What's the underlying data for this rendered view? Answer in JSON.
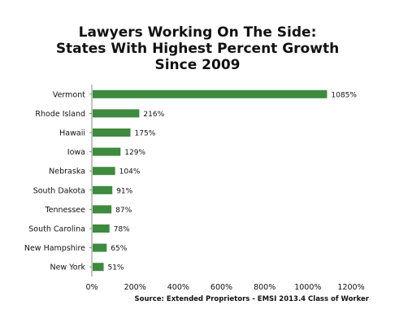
{
  "chart_data": {
    "type": "bar",
    "orientation": "horizontal",
    "title_lines": [
      "Lawyers Working On The Side:",
      "States With Highest Percent Growth",
      "Since 2009"
    ],
    "categories": [
      "Vermont",
      "Rhode Island",
      "Hawaii",
      "Iowa",
      "Nebraska",
      "South Dakota",
      "Tennessee",
      "South Carolina",
      "New Hampshire",
      "New York"
    ],
    "values": [
      1085,
      216,
      175,
      129,
      104,
      91,
      87,
      78,
      65,
      51
    ],
    "data_labels": [
      "1085%",
      "216%",
      "175%",
      "129%",
      "104%",
      "91%",
      "87%",
      "78%",
      "65%",
      "51%"
    ],
    "x_ticks": [
      0,
      200,
      400,
      600,
      800,
      1000,
      1200
    ],
    "x_tick_labels": [
      "0%",
      "200%",
      "400%",
      "600%",
      "800%",
      "1000%",
      "1200%"
    ],
    "xlim": [
      0,
      1200
    ],
    "bar_color": "#3e8a3e",
    "grid": false,
    "source": "Source: Extended Proprietors - EMSI 2013.4 Class of Worker"
  }
}
